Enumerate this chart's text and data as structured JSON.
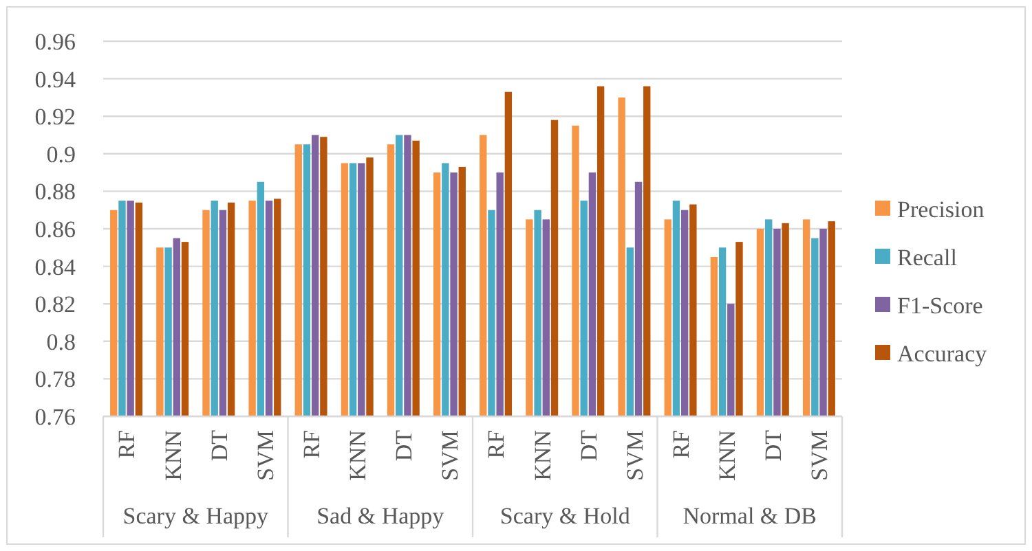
{
  "chart_data": {
    "type": "bar",
    "categories": [
      "RF",
      "KNN",
      "DT",
      "SVM",
      "RF",
      "KNN",
      "DT",
      "SVM",
      "RF",
      "KNN",
      "DT",
      "SVM",
      "RF",
      "KNN",
      "DT",
      "SVM"
    ],
    "series": [
      {
        "name": "Precision",
        "color": "#f79646",
        "values": [
          0.87,
          0.85,
          0.87,
          0.875,
          0.905,
          0.895,
          0.905,
          0.89,
          0.91,
          0.865,
          0.915,
          0.93,
          0.865,
          0.845,
          0.86,
          0.865
        ]
      },
      {
        "name": "Recall",
        "color": "#4bacc6",
        "values": [
          0.875,
          0.85,
          0.875,
          0.885,
          0.905,
          0.895,
          0.91,
          0.895,
          0.87,
          0.87,
          0.875,
          0.85,
          0.875,
          0.85,
          0.865,
          0.855
        ]
      },
      {
        "name": "F1-Score",
        "color": "#8064a2",
        "values": [
          0.875,
          0.855,
          0.87,
          0.875,
          0.91,
          0.895,
          0.91,
          0.89,
          0.89,
          0.865,
          0.89,
          0.885,
          0.87,
          0.82,
          0.86,
          0.86
        ]
      },
      {
        "name": "Accuracy",
        "color": "#b7560b",
        "values": [
          0.874,
          0.853,
          0.874,
          0.876,
          0.909,
          0.898,
          0.907,
          0.893,
          0.933,
          0.918,
          0.936,
          0.936,
          0.873,
          0.853,
          0.863,
          0.864
        ]
      }
    ],
    "annotations": [
      "Scary & Happy",
      "Sad & Happy",
      "Scary & Hold",
      "Normal & DB"
    ],
    "ylim": [
      0.76,
      0.96
    ],
    "yticks": [
      0.76,
      0.78,
      0.8,
      0.82,
      0.84,
      0.86,
      0.88,
      0.9,
      0.92,
      0.94,
      0.96
    ],
    "grid": "y",
    "legend": "right"
  }
}
